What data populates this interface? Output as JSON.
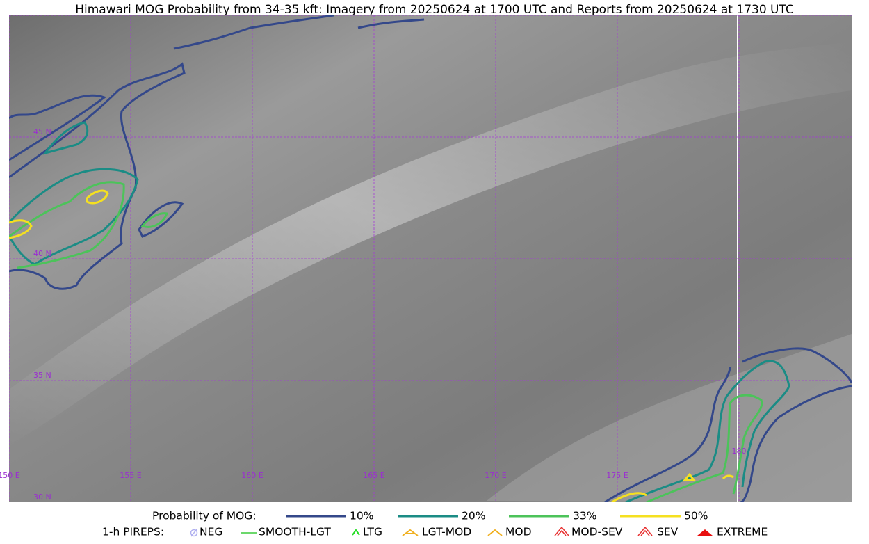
{
  "header": {
    "title": "Himawari MOG Probability from 34-35 kft: Imagery from 20250624 at 1700 UTC and Reports from 20250624 at 1730 UTC"
  },
  "map": {
    "lat_labels": [
      "45 N",
      "40 N",
      "35 N",
      "30 N"
    ],
    "lon_labels": [
      "150 E",
      "155 E",
      "160 E",
      "165 E",
      "170 E",
      "175 E",
      "180"
    ]
  },
  "legend": {
    "probability": {
      "label": "Probability of MOG:",
      "items": [
        "10%",
        "20%",
        "33%",
        "50%"
      ]
    },
    "pireps": {
      "label": "1-h PIREPS:",
      "items": [
        "NEG",
        "SMOOTH-LGT",
        "LTG",
        "LGT-MOD",
        "MOD",
        "MOD-SEV",
        "SEV",
        "EXTREME"
      ]
    }
  }
}
